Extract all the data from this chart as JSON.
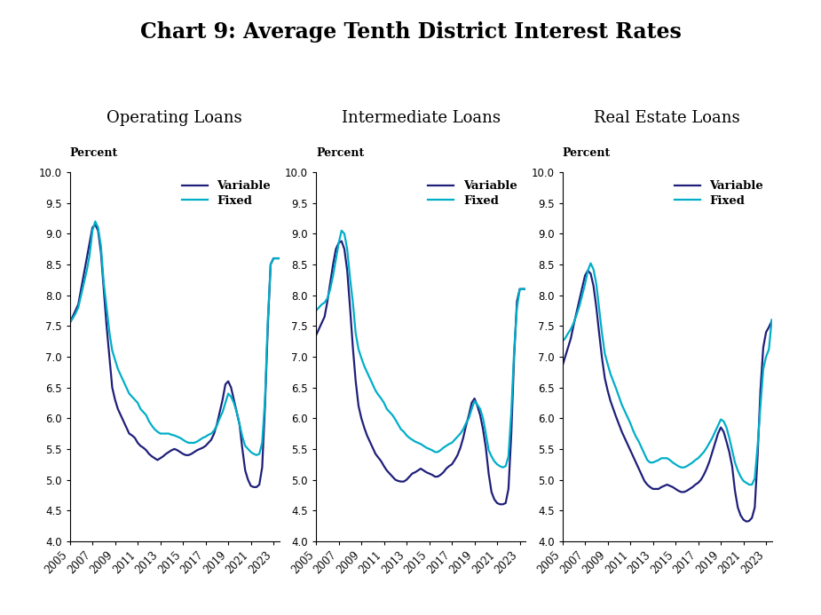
{
  "title": "Chart 9: Average Tenth District Interest Rates",
  "subtitle_op": "Operating Loans",
  "subtitle_int": "Intermediate Loans",
  "subtitle_re": "Real Estate Loans",
  "ylabel": "Percent",
  "ylim": [
    4.0,
    10.0
  ],
  "yticks": [
    4.0,
    4.5,
    5.0,
    5.5,
    6.0,
    6.5,
    7.0,
    7.5,
    8.0,
    8.5,
    9.0,
    9.5,
    10.0
  ],
  "variable_color": "#1f1f7a",
  "fixed_color": "#00aec8",
  "line_width": 1.6,
  "legend_labels": [
    "Variable",
    "Fixed"
  ],
  "op_variable": [
    7.55,
    7.65,
    7.75,
    7.85,
    8.1,
    8.35,
    8.6,
    8.85,
    9.1,
    9.15,
    9.05,
    8.7,
    8.1,
    7.5,
    7.0,
    6.5,
    6.3,
    6.15,
    6.05,
    5.95,
    5.85,
    5.75,
    5.72,
    5.68,
    5.6,
    5.55,
    5.52,
    5.48,
    5.42,
    5.38,
    5.35,
    5.32,
    5.35,
    5.38,
    5.42,
    5.45,
    5.48,
    5.5,
    5.48,
    5.45,
    5.42,
    5.4,
    5.4,
    5.42,
    5.45,
    5.48,
    5.5,
    5.52,
    5.55,
    5.6,
    5.65,
    5.75,
    5.9,
    6.1,
    6.3,
    6.55,
    6.6,
    6.5,
    6.3,
    6.1,
    5.9,
    5.5,
    5.15,
    5.0,
    4.9,
    4.88,
    4.88,
    4.92,
    5.2,
    6.2,
    7.5,
    8.5,
    8.6,
    8.6,
    8.6
  ],
  "op_fixed": [
    7.55,
    7.62,
    7.7,
    7.8,
    8.0,
    8.2,
    8.4,
    8.65,
    9.05,
    9.2,
    9.1,
    8.8,
    8.2,
    7.8,
    7.4,
    7.1,
    6.95,
    6.8,
    6.7,
    6.6,
    6.5,
    6.4,
    6.35,
    6.3,
    6.25,
    6.15,
    6.1,
    6.05,
    5.95,
    5.88,
    5.82,
    5.78,
    5.75,
    5.75,
    5.75,
    5.75,
    5.73,
    5.72,
    5.7,
    5.68,
    5.65,
    5.62,
    5.6,
    5.6,
    5.6,
    5.62,
    5.65,
    5.68,
    5.7,
    5.73,
    5.75,
    5.8,
    5.88,
    6.0,
    6.1,
    6.25,
    6.4,
    6.35,
    6.25,
    6.1,
    5.9,
    5.7,
    5.55,
    5.5,
    5.45,
    5.42,
    5.4,
    5.42,
    5.6,
    6.3,
    7.6,
    8.5,
    8.6,
    8.6,
    8.6
  ],
  "int_variable": [
    7.35,
    7.45,
    7.55,
    7.65,
    7.9,
    8.2,
    8.5,
    8.75,
    8.85,
    8.88,
    8.75,
    8.4,
    7.8,
    7.15,
    6.6,
    6.2,
    6.0,
    5.85,
    5.72,
    5.62,
    5.52,
    5.42,
    5.36,
    5.3,
    5.22,
    5.15,
    5.1,
    5.05,
    5.0,
    4.98,
    4.97,
    4.97,
    5.0,
    5.05,
    5.1,
    5.12,
    5.15,
    5.18,
    5.15,
    5.12,
    5.1,
    5.08,
    5.05,
    5.05,
    5.08,
    5.12,
    5.18,
    5.22,
    5.25,
    5.32,
    5.4,
    5.52,
    5.68,
    5.88,
    6.05,
    6.25,
    6.32,
    6.2,
    6.05,
    5.82,
    5.52,
    5.1,
    4.8,
    4.68,
    4.62,
    4.6,
    4.6,
    4.62,
    4.85,
    5.75,
    7.0,
    7.9,
    8.1,
    8.1,
    8.1
  ],
  "int_fixed": [
    7.75,
    7.8,
    7.85,
    7.88,
    7.95,
    8.1,
    8.32,
    8.58,
    8.85,
    9.05,
    9.0,
    8.75,
    8.28,
    7.88,
    7.38,
    7.12,
    6.98,
    6.85,
    6.75,
    6.65,
    6.55,
    6.45,
    6.38,
    6.32,
    6.25,
    6.15,
    6.1,
    6.05,
    5.98,
    5.9,
    5.82,
    5.78,
    5.72,
    5.68,
    5.65,
    5.62,
    5.6,
    5.58,
    5.55,
    5.52,
    5.5,
    5.48,
    5.45,
    5.45,
    5.48,
    5.52,
    5.55,
    5.58,
    5.6,
    5.65,
    5.7,
    5.75,
    5.82,
    5.92,
    6.0,
    6.15,
    6.28,
    6.22,
    6.15,
    6.0,
    5.75,
    5.48,
    5.38,
    5.3,
    5.25,
    5.22,
    5.2,
    5.22,
    5.38,
    6.1,
    7.1,
    7.8,
    8.1,
    8.1,
    8.1
  ],
  "re_variable": [
    6.85,
    7.0,
    7.15,
    7.3,
    7.52,
    7.72,
    7.92,
    8.12,
    8.32,
    8.4,
    8.35,
    8.15,
    7.8,
    7.38,
    6.98,
    6.65,
    6.45,
    6.28,
    6.15,
    6.02,
    5.9,
    5.78,
    5.68,
    5.58,
    5.48,
    5.38,
    5.28,
    5.18,
    5.08,
    4.98,
    4.92,
    4.88,
    4.85,
    4.85,
    4.85,
    4.88,
    4.9,
    4.92,
    4.9,
    4.88,
    4.85,
    4.82,
    4.8,
    4.8,
    4.82,
    4.85,
    4.88,
    4.92,
    4.95,
    5.0,
    5.08,
    5.18,
    5.3,
    5.45,
    5.6,
    5.75,
    5.85,
    5.78,
    5.62,
    5.45,
    5.22,
    4.82,
    4.55,
    4.42,
    4.35,
    4.32,
    4.33,
    4.38,
    4.55,
    5.38,
    6.45,
    7.15,
    7.4,
    7.48,
    7.58
  ],
  "re_fixed": [
    7.25,
    7.3,
    7.38,
    7.45,
    7.55,
    7.68,
    7.82,
    8.0,
    8.18,
    8.4,
    8.52,
    8.42,
    8.18,
    7.78,
    7.38,
    7.05,
    6.88,
    6.72,
    6.6,
    6.48,
    6.35,
    6.22,
    6.12,
    6.02,
    5.92,
    5.8,
    5.7,
    5.62,
    5.52,
    5.42,
    5.32,
    5.28,
    5.28,
    5.3,
    5.32,
    5.35,
    5.35,
    5.35,
    5.32,
    5.28,
    5.25,
    5.22,
    5.2,
    5.2,
    5.22,
    5.25,
    5.28,
    5.32,
    5.35,
    5.4,
    5.45,
    5.52,
    5.6,
    5.68,
    5.78,
    5.88,
    5.98,
    5.95,
    5.85,
    5.68,
    5.48,
    5.28,
    5.15,
    5.05,
    4.98,
    4.95,
    4.92,
    4.92,
    5.02,
    5.55,
    6.2,
    6.8,
    7.0,
    7.12,
    7.6
  ]
}
